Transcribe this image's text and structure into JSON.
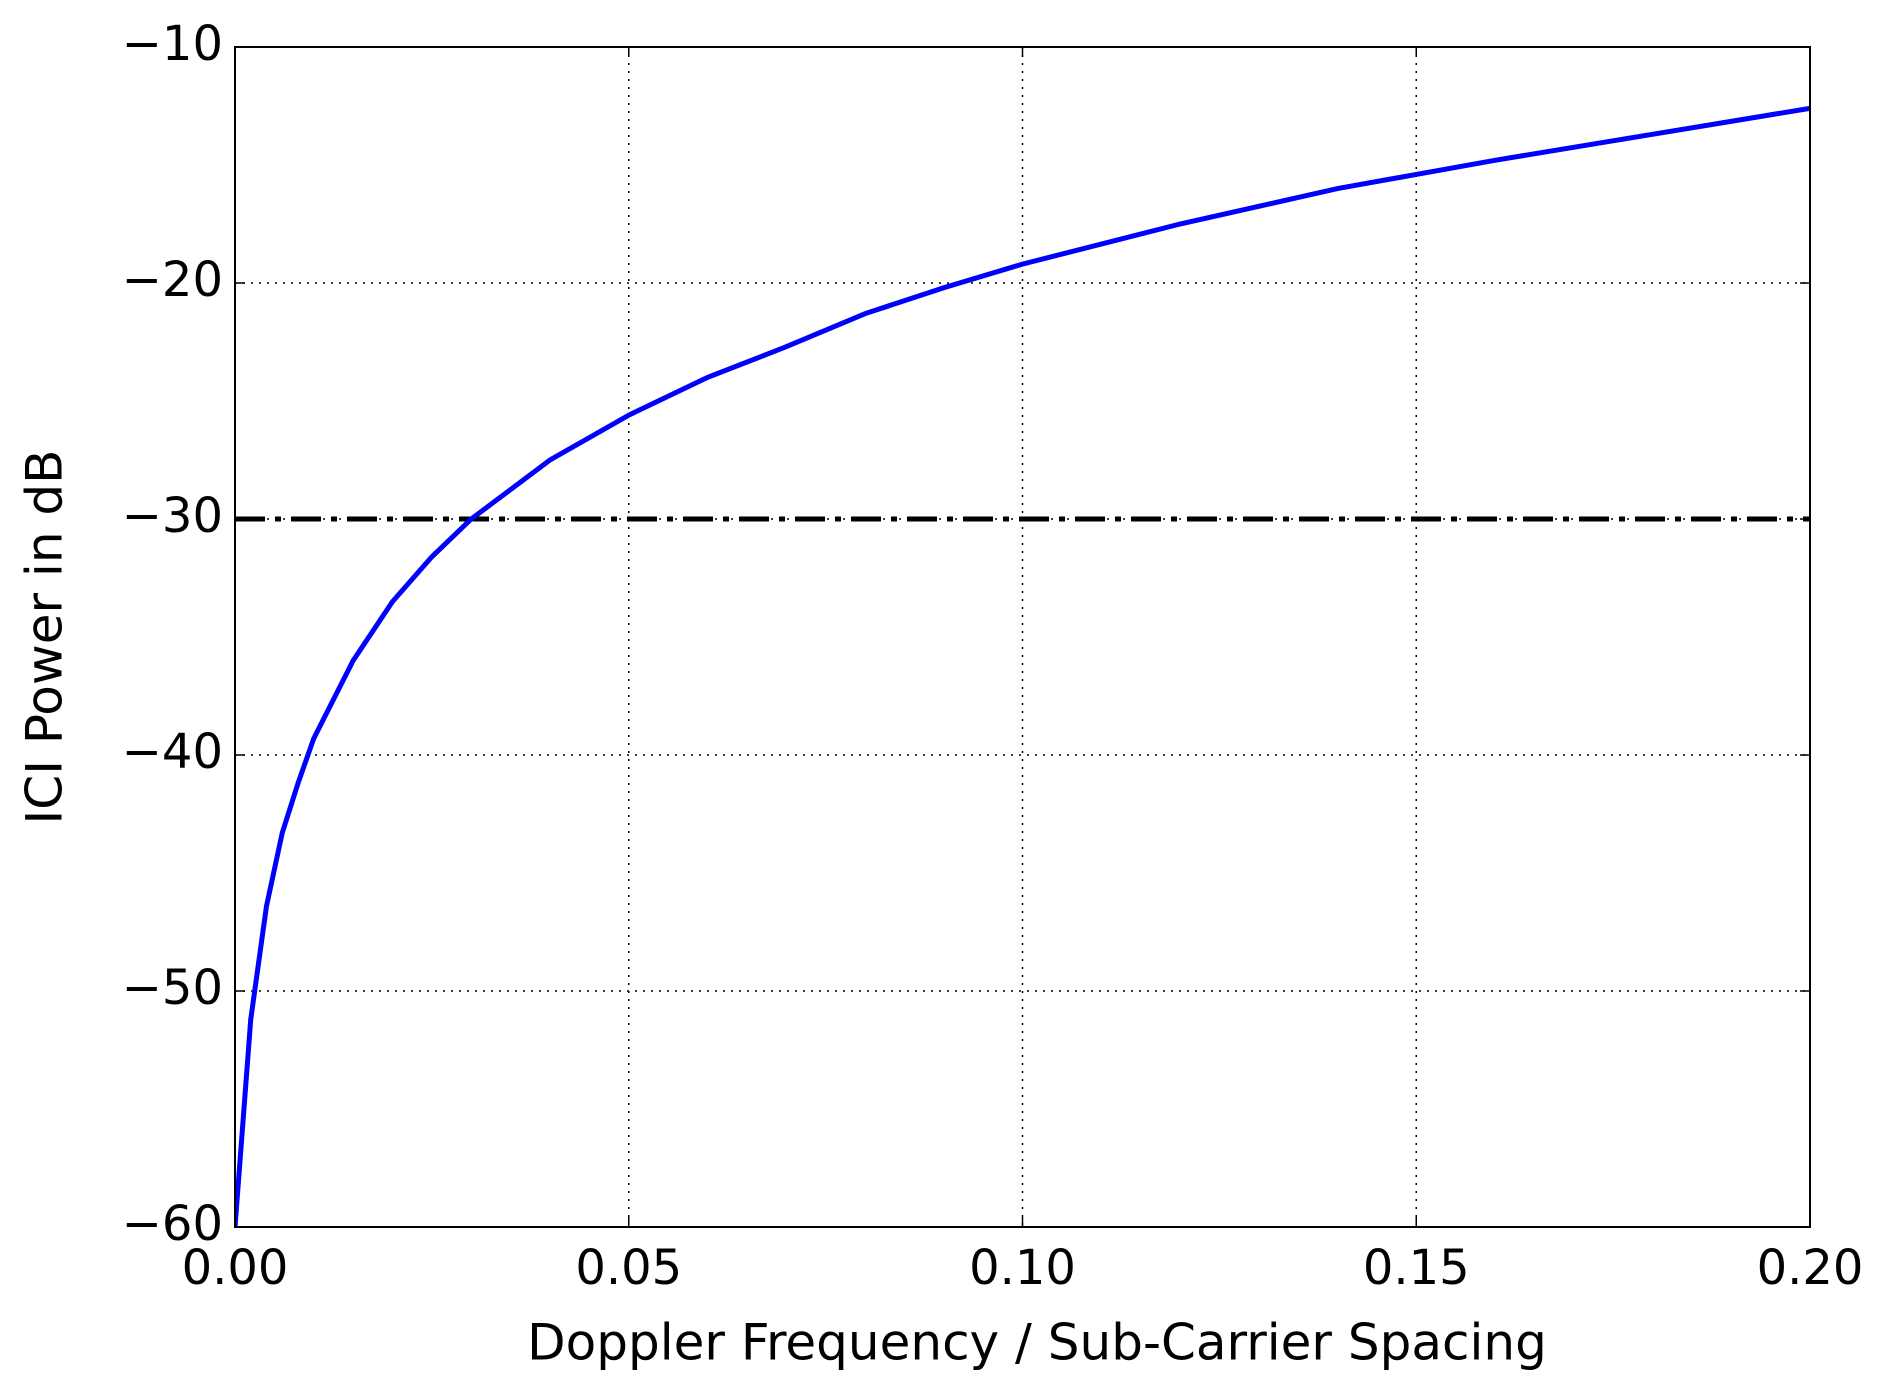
{
  "chart_data": {
    "type": "line",
    "xlabel": "Doppler Frequency / Sub-Carrier Spacing",
    "ylabel": "ICI Power in dB",
    "xlim": [
      0,
      0.2
    ],
    "ylim": [
      -60,
      -10
    ],
    "xticks": [
      {
        "value": 0,
        "label": "0.00"
      },
      {
        "value": 0.05,
        "label": "0.05"
      },
      {
        "value": 0.1,
        "label": "0.10"
      },
      {
        "value": 0.15,
        "label": "0.15"
      },
      {
        "value": 0.2,
        "label": "0.20"
      }
    ],
    "yticks": [
      {
        "value": -60,
        "label": "−60"
      },
      {
        "value": -50,
        "label": "−50"
      },
      {
        "value": -40,
        "label": "−40"
      },
      {
        "value": -30,
        "label": "−30"
      },
      {
        "value": -20,
        "label": "−20"
      },
      {
        "value": -10,
        "label": "−10"
      }
    ],
    "grid": true,
    "x": [
      0,
      0.002,
      0.004,
      0.006,
      0.008,
      0.01,
      0.015,
      0.02,
      0.025,
      0.03,
      0.04,
      0.05,
      0.06,
      0.07,
      0.08,
      0.09,
      0.1,
      0.12,
      0.14,
      0.15,
      0.16,
      0.18,
      0.2
    ],
    "series": [
      {
        "color": "#0000ff",
        "values": [
          -60,
          -51.2,
          -46.4,
          -43.3,
          -41.2,
          -39.3,
          -36.0,
          -33.5,
          -31.6,
          -30.0,
          -27.5,
          -25.6,
          -24.0,
          -22.7,
          -21.3,
          -20.2,
          -19.2,
          -17.5,
          -16.0,
          -15.4,
          -14.8,
          -13.7,
          -12.6
        ]
      }
    ],
    "hline": {
      "value": -30,
      "color": "#000000",
      "style": "dashdot"
    }
  }
}
